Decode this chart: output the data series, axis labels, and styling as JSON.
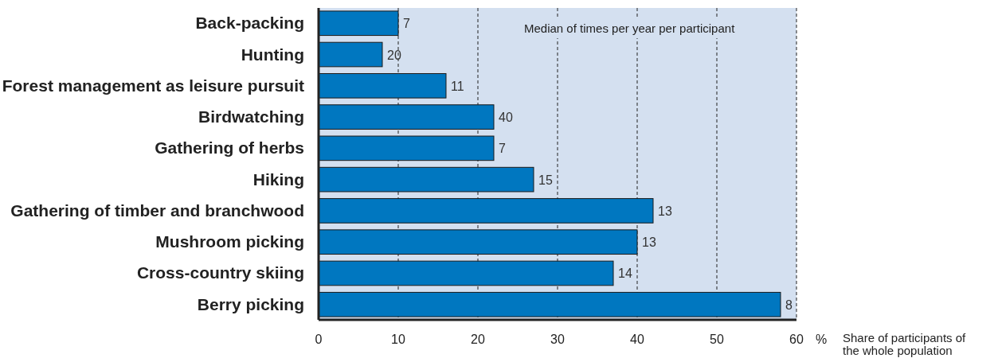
{
  "chart_data": {
    "type": "bar",
    "orientation": "horizontal",
    "categories": [
      "Back-packing",
      "Hunting",
      "Forest management as leisure pursuit",
      "Birdwatching",
      "Gathering of herbs",
      "Hiking",
      "Gathering of timber and branchwood",
      "Mushroom picking",
      "Cross-country skiing",
      "Berry picking"
    ],
    "values": [
      10,
      8,
      16,
      22,
      22,
      27,
      42,
      40,
      37,
      58
    ],
    "color": "#0077c0",
    "xlim": [
      0,
      60
    ],
    "xticks": [
      0,
      10,
      20,
      30,
      40,
      50,
      60
    ],
    "xlabel": "Share of participants of the whole population",
    "annotations": [
      "Median of times per year per participant",
      "%",
      {
        "text": "7",
        "x": 10,
        "y": "Back-packing"
      },
      {
        "text": "20",
        "x": 8,
        "y": "Hunting"
      },
      {
        "text": "11",
        "x": 16,
        "y": "Forest management as leisure pursuit"
      },
      {
        "text": "40",
        "x": 22,
        "y": "Birdwatching"
      },
      {
        "text": "7",
        "x": 22,
        "y": "Gathering of herbs"
      },
      {
        "text": "15",
        "x": 27,
        "y": "Hiking"
      },
      {
        "text": "13",
        "x": 42,
        "y": "Gathering of timber and branchwood"
      },
      {
        "text": "13",
        "x": 40,
        "y": "Mushroom picking"
      },
      {
        "text": "14",
        "x": 37,
        "y": "Cross-country skiing"
      },
      {
        "text": "8",
        "x": 58,
        "y": "Berry picking"
      }
    ],
    "grid": "x"
  }
}
